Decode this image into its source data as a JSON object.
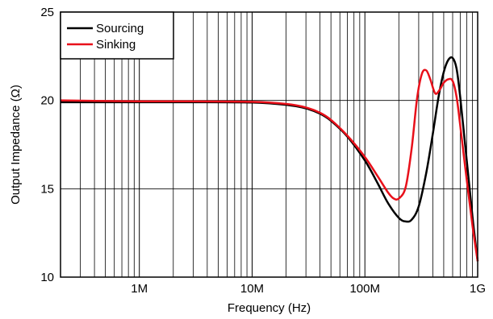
{
  "chart_data": {
    "type": "line",
    "xlabel": "Frequency (Hz)",
    "ylabel": "Output Impedance (Ω)",
    "x_scale": "log",
    "xlim": [
      200000,
      1000000000
    ],
    "ylim": [
      10,
      25
    ],
    "x_ticks": [
      {
        "value": 1000000,
        "label": "1M"
      },
      {
        "value": 10000000,
        "label": "10M"
      },
      {
        "value": 100000000,
        "label": "100M"
      },
      {
        "value": 1000000000,
        "label": "1G"
      }
    ],
    "y_ticks": [
      {
        "value": 10,
        "label": "10"
      },
      {
        "value": 15,
        "label": "15"
      },
      {
        "value": 20,
        "label": "20"
      },
      {
        "value": 25,
        "label": "25"
      }
    ],
    "grid": true,
    "legend_position": "top-left",
    "series": [
      {
        "name": "Sourcing",
        "color": "#000000",
        "x": [
          200000,
          1000000,
          3000000,
          10000000,
          20000000,
          30000000,
          40000000,
          50000000,
          70000000,
          100000000,
          130000000,
          160000000,
          200000000,
          230000000,
          260000000,
          300000000,
          350000000,
          400000000,
          450000000,
          500000000,
          550000000,
          600000000,
          650000000,
          700000000,
          800000000,
          900000000,
          1000000000
        ],
        "y": [
          19.9,
          19.9,
          19.9,
          19.88,
          19.75,
          19.55,
          19.25,
          18.85,
          17.95,
          16.6,
          15.3,
          14.2,
          13.35,
          13.15,
          13.25,
          14.0,
          15.9,
          18.1,
          20.2,
          21.6,
          22.3,
          22.4,
          21.8,
          20.2,
          16.6,
          13.4,
          10.9
        ]
      },
      {
        "name": "Sinking",
        "color": "#e8101a",
        "x": [
          200000,
          1000000,
          3000000,
          10000000,
          20000000,
          30000000,
          40000000,
          50000000,
          70000000,
          100000000,
          130000000,
          160000000,
          180000000,
          200000000,
          230000000,
          260000000,
          290000000,
          320000000,
          350000000,
          380000000,
          420000000,
          460000000,
          500000000,
          550000000,
          600000000,
          650000000,
          700000000,
          800000000,
          900000000,
          1000000000
        ],
        "y": [
          20.0,
          19.95,
          19.95,
          19.92,
          19.8,
          19.6,
          19.3,
          18.9,
          18.0,
          16.8,
          15.7,
          14.8,
          14.45,
          14.45,
          15.1,
          17.3,
          20.1,
          21.5,
          21.7,
          21.2,
          20.4,
          20.6,
          21.0,
          21.2,
          21.1,
          20.2,
          18.6,
          15.5,
          12.9,
          10.9
        ]
      }
    ]
  }
}
